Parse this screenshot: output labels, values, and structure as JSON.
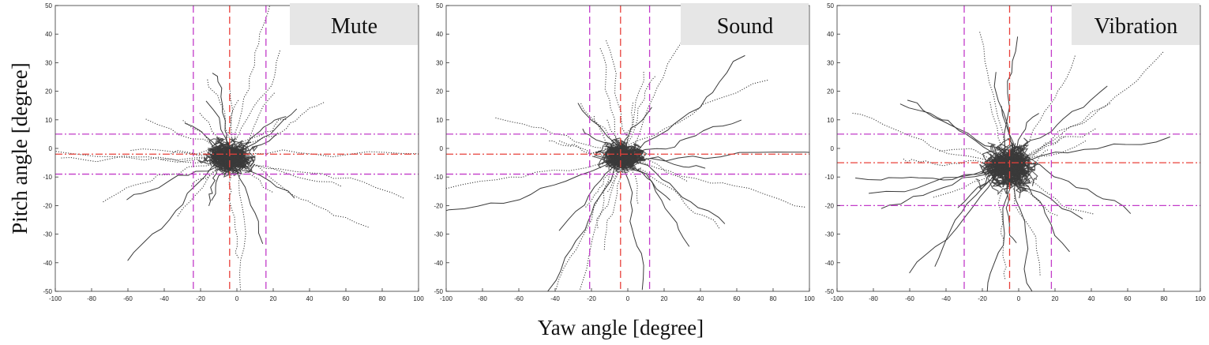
{
  "figure": {
    "xlabel": "Yaw angle [degree]",
    "ylabel": "Pitch angle [degree]"
  },
  "chart_data": [
    {
      "type": "scatter",
      "label": "Mute",
      "xlim": [
        -100,
        100
      ],
      "ylim": [
        -50,
        50
      ],
      "x_ticks": [
        -100,
        -80,
        -60,
        -40,
        -20,
        0,
        20,
        40,
        60,
        80,
        100
      ],
      "y_ticks": [
        -50,
        -40,
        -30,
        -20,
        -10,
        0,
        10,
        20,
        30,
        40,
        50
      ],
      "grid": false,
      "trace_color": "#3a3a3a",
      "trace_center": [
        -4,
        -3
      ],
      "trace_spread": [
        16,
        7
      ],
      "mean_lines": {
        "x": -4,
        "y": -2,
        "color": "#e8403a"
      },
      "bound_lines": {
        "x": [
          -24,
          16
        ],
        "y": [
          -9,
          5
        ],
        "color": "#c23cc9"
      }
    },
    {
      "type": "scatter",
      "label": "Sound",
      "xlim": [
        -100,
        100
      ],
      "ylim": [
        -50,
        50
      ],
      "x_ticks": [
        -100,
        -80,
        -60,
        -40,
        -20,
        0,
        20,
        40,
        60,
        80,
        100
      ],
      "y_ticks": [
        -50,
        -40,
        -30,
        -20,
        -10,
        0,
        10,
        20,
        30,
        40,
        50
      ],
      "grid": false,
      "trace_color": "#3a3a3a",
      "trace_center": [
        -3,
        -3
      ],
      "trace_spread": [
        14,
        6
      ],
      "mean_lines": {
        "x": -4,
        "y": -2,
        "color": "#e8403a"
      },
      "bound_lines": {
        "x": [
          -21,
          12
        ],
        "y": [
          -9,
          5
        ],
        "color": "#c23cc9"
      }
    },
    {
      "type": "scatter",
      "label": "Vibration",
      "xlim": [
        -100,
        100
      ],
      "ylim": [
        -50,
        50
      ],
      "x_ticks": [
        -100,
        -80,
        -60,
        -40,
        -20,
        0,
        20,
        40,
        60,
        80,
        100
      ],
      "y_ticks": [
        -50,
        -40,
        -30,
        -20,
        -10,
        0,
        10,
        20,
        30,
        40,
        50
      ],
      "grid": false,
      "trace_color": "#3a3a3a",
      "trace_center": [
        -6,
        -6
      ],
      "trace_spread": [
        17,
        10
      ],
      "mean_lines": {
        "x": -5,
        "y": -5,
        "color": "#e8403a"
      },
      "bound_lines": {
        "x": [
          -30,
          18
        ],
        "y": [
          -20,
          5
        ],
        "color": "#c23cc9"
      }
    }
  ]
}
